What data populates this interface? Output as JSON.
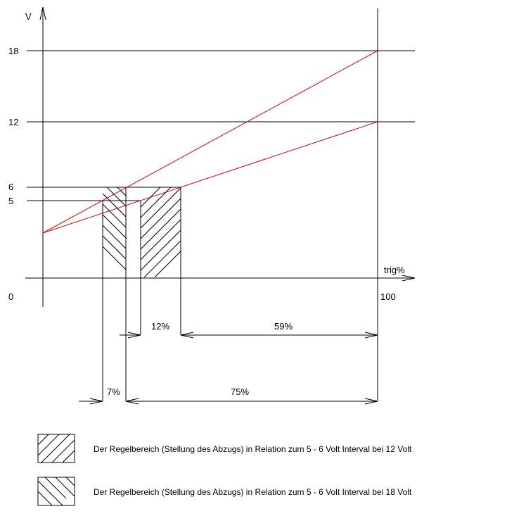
{
  "axes": {
    "y_label": "V",
    "x_label": "trig%",
    "y_ticks": [
      "18",
      "12",
      "6",
      "5"
    ],
    "x_origin": "0",
    "x_end": "100"
  },
  "measures": {
    "range_12v": "12%",
    "rest_12v": "59%",
    "range_18v": "7%",
    "rest_18v": "75%"
  },
  "legend": [
    {
      "pattern": "hatch-forward",
      "text": "Der Regelbereich (Stellung des Abzugs) in Relation zum 5 - 6 Volt Interval bei 12 Volt"
    },
    {
      "pattern": "hatch-back",
      "text": "Der Regelbereich (Stellung des Abzugs) in Relation zum 5 - 6 Volt Interval bei 18 Volt"
    }
  ],
  "colors": {
    "curve": "#e00000",
    "lines": "#000000"
  }
}
